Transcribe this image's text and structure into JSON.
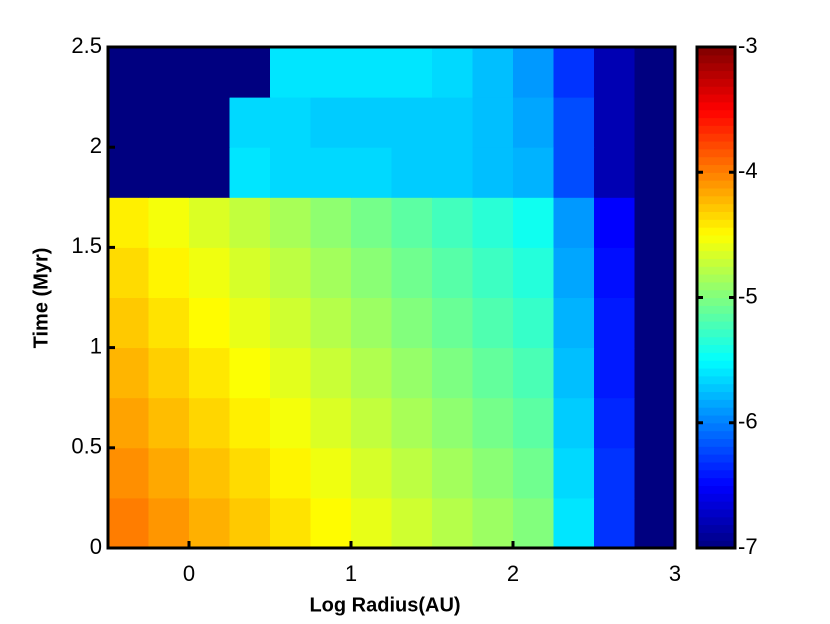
{
  "chart_data": {
    "type": "heatmap",
    "xlabel": "Log Radius(AU)",
    "ylabel": "Time (Myr)",
    "xlim": [
      -0.5,
      3
    ],
    "ylim": [
      0,
      2.5
    ],
    "xticks": [
      0,
      1,
      2,
      3
    ],
    "yticks": [
      0,
      0.5,
      1,
      1.5,
      2,
      2.5
    ],
    "x": [
      -0.375,
      -0.125,
      0.125,
      0.375,
      0.625,
      0.875,
      1.125,
      1.375,
      1.625,
      1.875,
      2.125,
      2.375,
      2.625,
      2.875
    ],
    "y": [
      0.125,
      0.375,
      0.625,
      0.875,
      1.125,
      1.375,
      1.625,
      1.875,
      2.125,
      2.375
    ],
    "z": [
      [
        -3.99,
        -4.09,
        -4.19,
        -4.29,
        -4.39,
        -4.49,
        -4.59,
        -4.69,
        -4.79,
        -4.89,
        -4.99,
        -5.6,
        -6.3,
        -7
      ],
      [
        -4.06,
        -4.16,
        -4.26,
        -4.36,
        -4.46,
        -4.56,
        -4.66,
        -4.76,
        -4.86,
        -4.96,
        -5.06,
        -5.65,
        -6.3,
        -7
      ],
      [
        -4.14,
        -4.24,
        -4.34,
        -4.44,
        -4.54,
        -4.64,
        -4.74,
        -4.84,
        -4.94,
        -5.04,
        -5.14,
        -5.7,
        -6.35,
        -7
      ],
      [
        -4.21,
        -4.31,
        -4.41,
        -4.51,
        -4.61,
        -4.71,
        -4.81,
        -4.91,
        -5.01,
        -5.11,
        -5.21,
        -5.75,
        -6.4,
        -7
      ],
      [
        -4.29,
        -4.39,
        -4.49,
        -4.59,
        -4.69,
        -4.79,
        -4.89,
        -4.99,
        -5.09,
        -5.19,
        -5.29,
        -5.8,
        -6.4,
        -7
      ],
      [
        -4.36,
        -4.46,
        -4.56,
        -4.66,
        -4.76,
        -4.86,
        -4.96,
        -5.06,
        -5.16,
        -5.26,
        -5.36,
        -5.85,
        -6.45,
        -7
      ],
      [
        -4.44,
        -4.54,
        -4.64,
        -4.74,
        -4.84,
        -4.94,
        -5.04,
        -5.14,
        -5.24,
        -5.34,
        -5.44,
        -5.9,
        -6.5,
        -7
      ],
      [
        -7,
        -7,
        -7,
        -5.6,
        -5.65,
        -5.65,
        -5.65,
        -5.7,
        -5.7,
        -5.75,
        -5.8,
        -6.2,
        -6.8,
        -7
      ],
      [
        -7,
        -7,
        -7,
        -5.65,
        -5.65,
        -5.7,
        -5.7,
        -5.7,
        -5.7,
        -5.75,
        -5.85,
        -6.2,
        -6.8,
        -7
      ],
      [
        -7,
        -7,
        -7,
        -7,
        -5.6,
        -5.6,
        -5.6,
        -5.6,
        -5.65,
        -5.75,
        -5.9,
        -6.3,
        -6.8,
        -7
      ]
    ],
    "colormap": "jet",
    "clim": [
      -7,
      -3
    ],
    "cticks": [
      -7,
      -6,
      -5,
      -4,
      -3
    ]
  }
}
